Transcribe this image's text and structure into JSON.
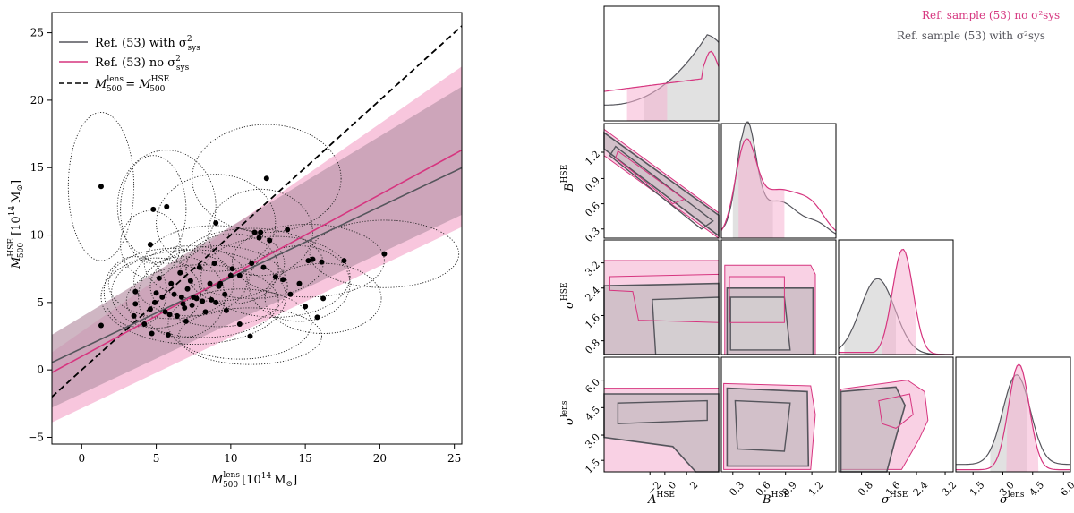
{
  "colors": {
    "pink": "#d6357f",
    "pink_fill": "#f5b3d2",
    "gray": "#55555c",
    "gray_fill": "#b3b3b3",
    "dash": "#000000"
  },
  "chart_data": [
    {
      "type": "scatter",
      "xlabel": "M_500^lens [10^14 M⊙]",
      "ylabel": "M_500^HSE [10^14 M⊙]",
      "xlim": [
        -2,
        25.5
      ],
      "ylim": [
        -5.5,
        26.5
      ],
      "xticks": [
        "0",
        "5",
        "10",
        "15",
        "20",
        "25"
      ],
      "yticks": [
        "−5",
        "0",
        "5",
        "10",
        "15",
        "20",
        "25"
      ],
      "legend": [
        "Ref. (53) with σ²sys",
        "Ref. (53) no σ²sys",
        "M500lens = M500HSE"
      ],
      "points": [
        [
          1.3,
          13.6
        ],
        [
          1.3,
          3.3
        ],
        [
          3.5,
          4.0
        ],
        [
          3.6,
          5.8
        ],
        [
          3.6,
          4.9
        ],
        [
          4.2,
          3.4
        ],
        [
          4.6,
          4.5
        ],
        [
          4.6,
          9.3
        ],
        [
          4.8,
          11.9
        ],
        [
          4.9,
          5.0
        ],
        [
          5.0,
          5.7
        ],
        [
          5.2,
          6.8
        ],
        [
          5.4,
          5.4
        ],
        [
          5.6,
          4.3
        ],
        [
          5.7,
          12.1
        ],
        [
          5.8,
          2.6
        ],
        [
          5.9,
          4.1
        ],
        [
          6.0,
          6.4
        ],
        [
          6.2,
          5.6
        ],
        [
          6.4,
          4.0
        ],
        [
          6.6,
          7.2
        ],
        [
          6.7,
          5.4
        ],
        [
          6.9,
          4.6
        ],
        [
          7.0,
          3.6
        ],
        [
          7.1,
          6.0
        ],
        [
          7.3,
          6.6
        ],
        [
          7.4,
          4.8
        ],
        [
          7.5,
          5.4
        ],
        [
          7.7,
          5.3
        ],
        [
          7.9,
          7.6
        ],
        [
          8.1,
          5.1
        ],
        [
          8.3,
          4.3
        ],
        [
          8.6,
          6.4
        ],
        [
          8.7,
          5.2
        ],
        [
          8.9,
          7.9
        ],
        [
          9.0,
          10.9
        ],
        [
          9.0,
          5.0
        ],
        [
          9.2,
          6.2
        ],
        [
          9.3,
          6.4
        ],
        [
          9.6,
          5.6
        ],
        [
          9.7,
          4.4
        ],
        [
          10.0,
          7.0
        ],
        [
          10.1,
          7.5
        ],
        [
          10.6,
          7.0
        ],
        [
          10.6,
          3.4
        ],
        [
          11.3,
          2.5
        ],
        [
          11.4,
          7.9
        ],
        [
          11.6,
          10.2
        ],
        [
          11.9,
          9.8
        ],
        [
          12.0,
          10.2
        ],
        [
          12.2,
          7.6
        ],
        [
          12.4,
          14.2
        ],
        [
          12.6,
          9.6
        ],
        [
          13.0,
          6.9
        ],
        [
          13.5,
          6.7
        ],
        [
          14.0,
          5.6
        ],
        [
          13.8,
          10.4
        ],
        [
          14.6,
          6.4
        ],
        [
          15.0,
          4.7
        ],
        [
          15.2,
          8.1
        ],
        [
          15.5,
          8.2
        ],
        [
          15.8,
          3.9
        ],
        [
          16.1,
          8.0
        ],
        [
          16.2,
          5.3
        ],
        [
          17.6,
          8.1
        ],
        [
          20.3,
          8.6
        ],
        [
          4.7,
          2.7
        ],
        [
          6.8,
          4.9
        ]
      ],
      "ellipses": [
        [
          1.3,
          13.6,
          2.2,
          5.5
        ],
        [
          4.8,
          11.9,
          2.2,
          4.0
        ],
        [
          5.7,
          12.1,
          3.3,
          4.2
        ],
        [
          12.4,
          14.2,
          5.0,
          4.0
        ],
        [
          3.6,
          5.8,
          2.1,
          2.6
        ],
        [
          4.6,
          9.3,
          2.0,
          2.5
        ],
        [
          9.0,
          10.9,
          4.0,
          3.6
        ],
        [
          6.0,
          6.4,
          4.2,
          2.6
        ],
        [
          7.3,
          6.6,
          3.8,
          2.6
        ],
        [
          9.2,
          6.2,
          4.6,
          3.0
        ],
        [
          11.4,
          7.9,
          4.8,
          2.6
        ],
        [
          12.0,
          10.2,
          3.5,
          3.2
        ],
        [
          13.0,
          6.9,
          5.0,
          3.0
        ],
        [
          15.2,
          8.1,
          5.1,
          2.7
        ],
        [
          20.3,
          8.6,
          5.0,
          2.5
        ],
        [
          16.2,
          5.3,
          3.9,
          2.6
        ],
        [
          14.6,
          6.4,
          3.4,
          2.8
        ],
        [
          8.1,
          5.1,
          5.1,
          2.7
        ],
        [
          5.0,
          5.7,
          3.0,
          2.6
        ],
        [
          10.1,
          7.5,
          3.1,
          2.6
        ],
        [
          10.6,
          3.4,
          4.8,
          2.6
        ],
        [
          11.3,
          2.5,
          4.8,
          2.1
        ],
        [
          7.5,
          5.4,
          6.2,
          3.5
        ],
        [
          8.9,
          7.9,
          4.7,
          2.8
        ],
        [
          6.7,
          5.4,
          2.9,
          3.0
        ]
      ],
      "fit_no_sys": {
        "intercept": 1.0,
        "slope": 0.6,
        "lo_at_xmin": -3.9,
        "hi_at_xmin": 1.3,
        "lo_at_xmax": 10.6,
        "hi_at_xmax": 22.5
      },
      "fit_with_sys": {
        "intercept": 1.6,
        "slope": 0.525,
        "lo_at_xmin": -2.8,
        "hi_at_xmin": 2.6,
        "lo_at_xmax": 11.5,
        "hi_at_xmax": 21.0
      }
    },
    {
      "type": "corner",
      "legend": [
        "Ref. sample (53) no σ²sys",
        "Ref. sample (53) with σ²sys"
      ],
      "params": [
        {
          "name": "A^HSE",
          "ticks": [
            "−2",
            "0",
            "2"
          ]
        },
        {
          "name": "B^HSE",
          "ticks": [
            "0.3",
            "0.6",
            "0.9",
            "1.2"
          ]
        },
        {
          "name": "σ^HSE",
          "ticks": [
            "0.8",
            "1.6",
            "2.4",
            "3.2"
          ]
        },
        {
          "name": "σ^lens",
          "ticks": [
            "1.5",
            "3.0",
            "4.5",
            "6.0"
          ]
        }
      ],
      "ranges": [
        [
          -4,
          4
        ],
        [
          0.15,
          1.35
        ],
        [
          0.0,
          3.3
        ],
        [
          0.3,
          6.0
        ]
      ]
    }
  ],
  "labels": {
    "legend_left_1": "Ref. (53) with σ",
    "legend_left_2": "Ref. (53) no σ",
    "leg_sys": "sys",
    "leg_sq": "2",
    "legend_left_3a": "M",
    "legend_left_3b": " = M",
    "sup_lens": "lens",
    "sup_hse": "HSE",
    "sub_500": "500",
    "xlabel_unit": "[10",
    "exp14": "14",
    "unit_tail": "M",
    "sun": "⊙",
    "close_bracket": "]",
    "legend_right_1": "Ref. sample (53) no σ",
    "legend_right_2": "Ref. sample (53) with σ",
    "ylab_B": "B",
    "ylab_sigma": "σ",
    "xlab_A": "A"
  }
}
